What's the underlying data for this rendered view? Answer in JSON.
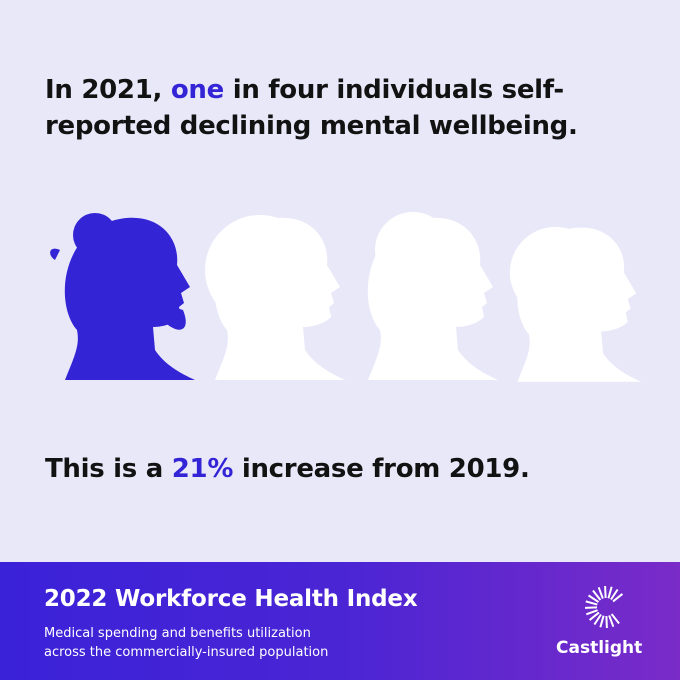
{
  "headline": {
    "before": "In 2021,",
    "highlight": "one",
    "after": "in four individuals self-reported declining mental wellbeing."
  },
  "statement": {
    "before": "This is a",
    "highlight": "21%",
    "after": "increase from 2019."
  },
  "footer": {
    "title": "2022 Workforce Health Index",
    "subtitle": [
      "Medical spending and benefits utilization",
      "across the commercially-insured population"
    ],
    "logo": "Castlight"
  }
}
